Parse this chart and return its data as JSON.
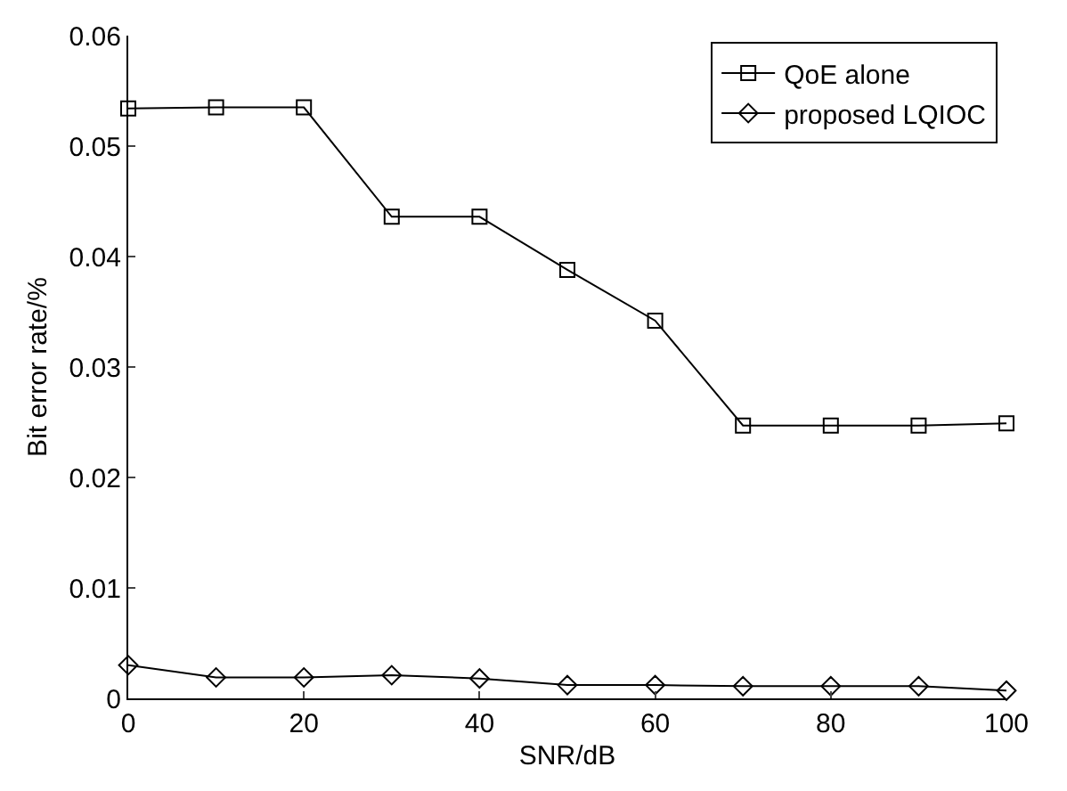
{
  "chart_data": {
    "type": "line",
    "xlabel": "SNR/dB",
    "ylabel": "Bit error rate/%",
    "x": [
      0,
      10,
      20,
      30,
      40,
      50,
      60,
      70,
      80,
      90,
      100
    ],
    "series": [
      {
        "name": "QoE alone",
        "color": "#000000",
        "marker": "square",
        "values": [
          0.0534,
          0.0535,
          0.0535,
          0.0436,
          0.0436,
          0.0388,
          0.0342,
          0.0247,
          0.0247,
          0.0247,
          0.0249
        ]
      },
      {
        "name": "proposed LQIOC",
        "color": "#000000",
        "marker": "diamond",
        "values": [
          0.003,
          0.0019,
          0.0019,
          0.0021,
          0.0018,
          0.0012,
          0.0012,
          0.0011,
          0.0011,
          0.0011,
          0.0007
        ]
      }
    ],
    "xlim": [
      0,
      100
    ],
    "xticks": [
      0,
      20,
      40,
      60,
      80,
      100
    ],
    "ylim": [
      0,
      0.06
    ],
    "yticks": [
      {
        "value": 0,
        "label": "0"
      },
      0.01,
      0.02,
      0.03,
      0.04,
      0.05,
      0.06
    ],
    "grid": false,
    "legend": "top right",
    "line_style": "solid"
  }
}
